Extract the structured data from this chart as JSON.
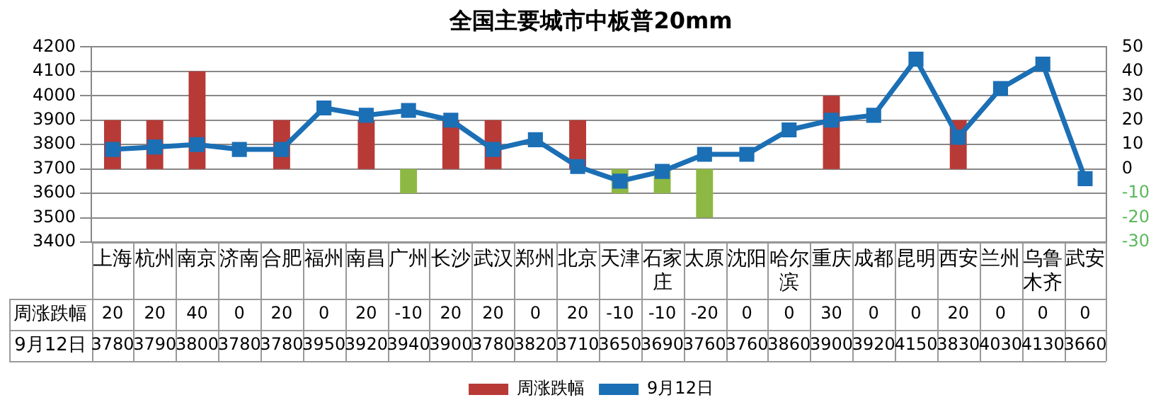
{
  "chart_data": {
    "type": "bar",
    "title": "全国主要城市中板普20mm",
    "categories": [
      "上海",
      "杭州",
      "南京",
      "济南",
      "合肥",
      "福州",
      "南昌",
      "广州",
      "长沙",
      "武汉",
      "郑州",
      "北京",
      "天津",
      "石家庄",
      "太原",
      "沈阳",
      "哈尔滨",
      "重庆",
      "成都",
      "昆明",
      "西安",
      "兰州",
      "乌鲁木齐",
      "武安"
    ],
    "series": [
      {
        "name": "周涨跌幅",
        "axis": "y2",
        "color": "#b83a36",
        "colors": [
          "#b83a36",
          "#b83a36",
          "#b83a36",
          "#b83a36",
          "#b83a36",
          "#b83a36",
          "#b83a36",
          "#8db843",
          "#b83a36",
          "#b83a36",
          "#b83a36",
          "#b83a36",
          "#8db843",
          "#8db843",
          "#8db843",
          "#b83a36",
          "#b83a36",
          "#b83a36",
          "#b83a36",
          "#b83a36",
          "#b83a36",
          "#b83a36",
          "#b83a36",
          "#b83a36"
        ],
        "values": [
          20,
          20,
          40,
          0,
          20,
          0,
          20,
          -10,
          20,
          20,
          0,
          20,
          -10,
          -10,
          -20,
          0,
          0,
          30,
          0,
          0,
          20,
          0,
          0,
          0
        ]
      },
      {
        "name": "9月12日",
        "type": "line",
        "color": "#1b6fb5",
        "values": [
          3780,
          3790,
          3800,
          3780,
          3780,
          3950,
          3920,
          3940,
          3900,
          3780,
          3820,
          3710,
          3650,
          3690,
          3760,
          3760,
          3860,
          3900,
          3920,
          4150,
          3830,
          4030,
          4130,
          3660
        ]
      }
    ],
    "ylim": [
      3400,
      4200
    ],
    "yticks": [
      3400,
      3500,
      3600,
      3700,
      3800,
      3900,
      4000,
      4100,
      4200
    ],
    "y2lim": [
      -30,
      50
    ],
    "y2ticks": [
      -30,
      -20,
      -10,
      0,
      10,
      20,
      30,
      40,
      50
    ],
    "grid": "y",
    "legend": "bottom",
    "marker": "square",
    "line_style": "solid",
    "data_labels": true
  }
}
